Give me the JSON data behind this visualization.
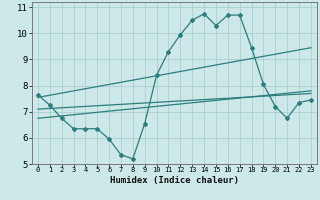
{
  "bg_color": "#cce8e8",
  "line_color": "#2e7d7d",
  "grid_color": "#aacfcf",
  "xlabel": "Humidex (Indice chaleur)",
  "xlim": [
    -0.5,
    23.5
  ],
  "ylim": [
    5,
    11.2
  ],
  "xticks": [
    0,
    1,
    2,
    3,
    4,
    5,
    6,
    7,
    8,
    9,
    10,
    11,
    12,
    13,
    14,
    15,
    16,
    17,
    18,
    19,
    20,
    21,
    22,
    23
  ],
  "yticks": [
    5,
    6,
    7,
    8,
    9,
    10,
    11
  ],
  "series": {
    "main": {
      "x": [
        0,
        1,
        2,
        3,
        4,
        5,
        6,
        7,
        8,
        9,
        10,
        11,
        12,
        13,
        14,
        15,
        16,
        17,
        18,
        19,
        20,
        21,
        22,
        23
      ],
      "y": [
        7.65,
        7.25,
        6.75,
        6.35,
        6.35,
        6.35,
        5.95,
        5.35,
        5.2,
        6.55,
        8.4,
        9.3,
        9.95,
        10.5,
        10.75,
        10.3,
        10.7,
        10.7,
        9.45,
        8.05,
        7.2,
        6.75,
        7.35,
        7.45
      ]
    },
    "upper_trend": {
      "x": [
        0,
        23
      ],
      "y": [
        7.55,
        9.45
      ]
    },
    "lower_trend": {
      "x": [
        0,
        23
      ],
      "y": [
        7.1,
        7.7
      ]
    },
    "mid_trend": {
      "x": [
        0,
        23
      ],
      "y": [
        6.75,
        7.8
      ]
    }
  }
}
